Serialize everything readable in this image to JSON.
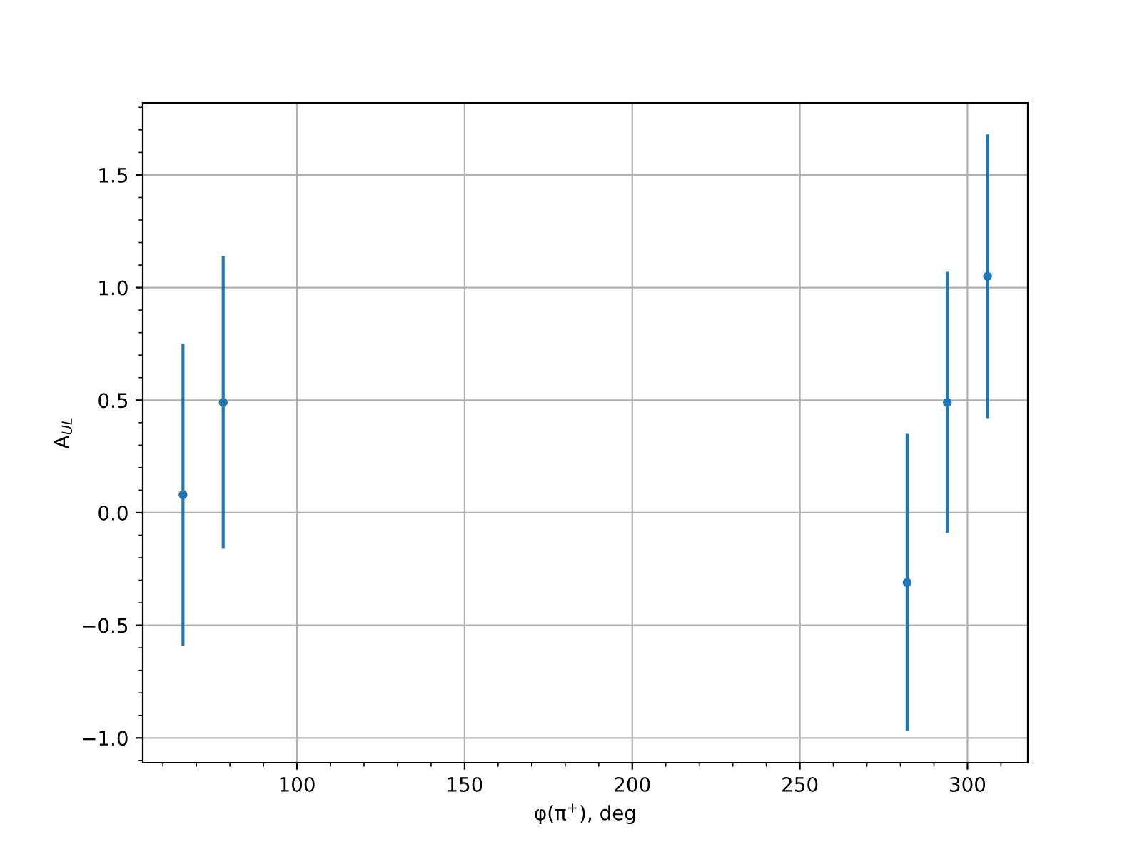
{
  "chart_data": {
    "type": "scatter",
    "xlabel": "φ(π$^{+}$), deg",
    "ylabel": "A$_{UL}$",
    "x": [
      66,
      78,
      282,
      294,
      306
    ],
    "series": [
      {
        "color": "#1f77b4",
        "values": [
          0.08,
          0.49,
          -0.31,
          0.49,
          1.05
        ],
        "errors": [
          0.67,
          0.65,
          0.66,
          0.58,
          0.63
        ]
      }
    ],
    "xlim": [
      54,
      318
    ],
    "ylim": [
      -1.11,
      1.82
    ],
    "xticks": [
      100,
      150,
      200,
      250,
      300
    ],
    "yticks": [
      {
        "value": -1.0,
        "label": "−1.0"
      },
      {
        "value": -0.5,
        "label": "−0.5"
      },
      {
        "value": 0,
        "label": "0.0"
      },
      0.5,
      {
        "value": 1,
        "label": "1.0"
      },
      1.5
    ],
    "grid": true,
    "marker": "circle"
  }
}
